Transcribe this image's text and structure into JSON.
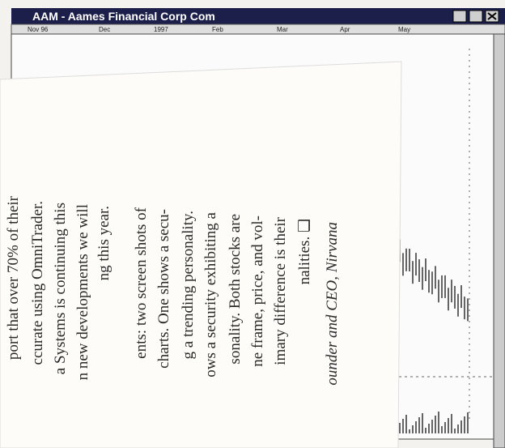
{
  "window": {
    "title": "AAM - Aames Financial Corp Com",
    "time_axis": [
      "Nov 96",
      "Dec",
      "1997",
      "Feb",
      "Mar",
      "Apr",
      "May"
    ]
  },
  "article": {
    "lines": [
      "port that over 70% of their",
      "ccurate using OmniTrader.",
      "a Systems is continuing this",
      "n new developments we will",
      "ng this year.",
      "ents: two screen shots of",
      "charts. One shows a secu-",
      "g a trending personality.",
      "ows a security exhibiting a",
      "sonality. Both stocks are",
      "ne frame, price, and vol-",
      "imary difference is their",
      "nalities. ❑"
    ],
    "byline": "ounder and CEO, Nirvana"
  }
}
